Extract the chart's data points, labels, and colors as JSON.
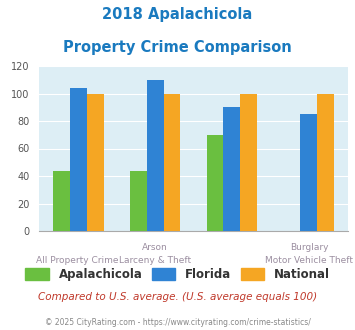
{
  "title_line1": "2018 Apalachicola",
  "title_line2": "Property Crime Comparison",
  "title_color": "#1a7abf",
  "x_labels_top": [
    "",
    "Arson",
    "",
    "Burglary"
  ],
  "x_labels_bottom": [
    "All Property Crime",
    "Larceny & Theft",
    "",
    "Motor Vehicle Theft"
  ],
  "apalachicola": [
    44,
    44,
    70,
    0
  ],
  "florida": [
    104,
    110,
    90,
    85
  ],
  "national": [
    100,
    100,
    100,
    100
  ],
  "bar_colors": {
    "apalachicola": "#6abf40",
    "florida": "#2f83d4",
    "national": "#f5a623"
  },
  "ylim": [
    0,
    120
  ],
  "yticks": [
    0,
    20,
    40,
    60,
    80,
    100,
    120
  ],
  "plot_bg": "#ddeef5",
  "legend_labels": [
    "Apalachicola",
    "Florida",
    "National"
  ],
  "footnote1": "Compared to U.S. average. (U.S. average equals 100)",
  "footnote2": "© 2025 CityRating.com - https://www.cityrating.com/crime-statistics/",
  "footnote1_color": "#c0392b",
  "footnote2_color": "#888888"
}
